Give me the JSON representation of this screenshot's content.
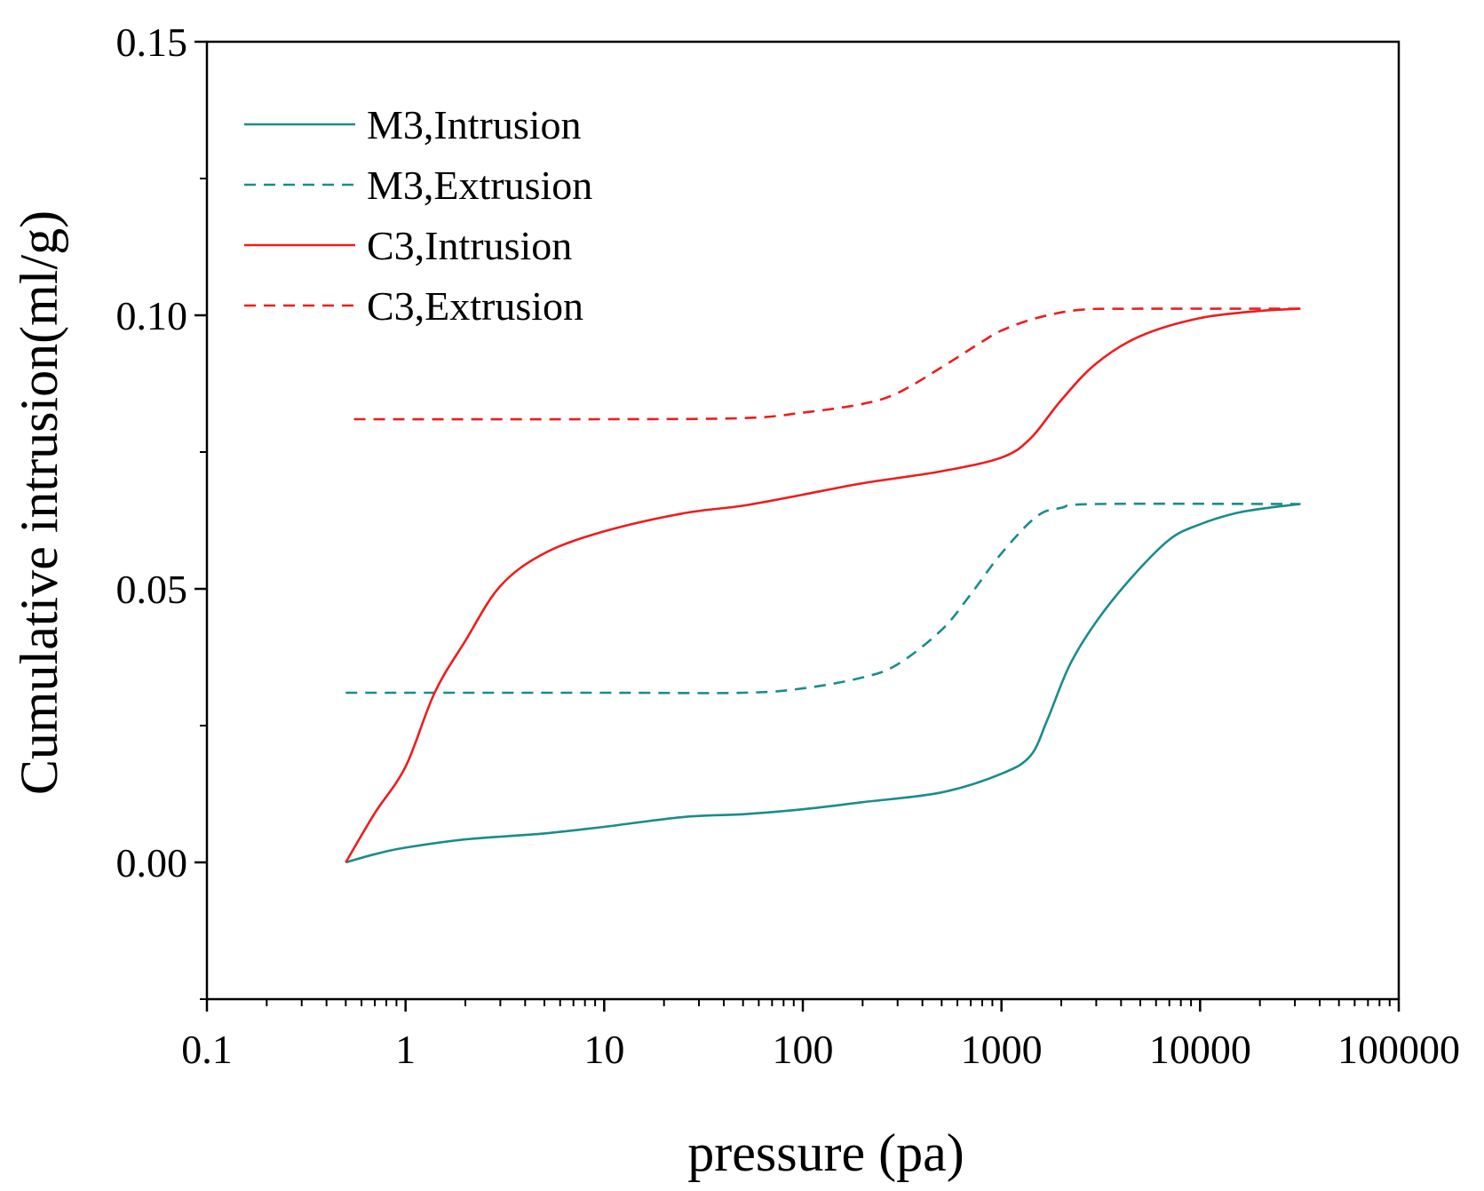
{
  "chart_data": {
    "type": "line",
    "title": "",
    "xlabel": "pressure (pa)",
    "ylabel": "Cumulative intrusion(ml/g)",
    "xscale": "log",
    "xlim": [
      0.1,
      100000
    ],
    "ylim": [
      -0.025,
      0.15
    ],
    "x_ticks": [
      0.1,
      1,
      10,
      100,
      1000,
      10000,
      100000
    ],
    "x_tick_labels": [
      "0.1",
      "1",
      "10",
      "100",
      "1000",
      "10000",
      "100000"
    ],
    "y_ticks": [
      0.0,
      0.05,
      0.1,
      0.15
    ],
    "y_tick_labels": [
      "0.00",
      "0.05",
      "0.10",
      "0.15"
    ],
    "grid": false,
    "legend_position": "top-left",
    "series": [
      {
        "name": "M3,Intrusion",
        "color": "#1a8c8c",
        "dash": "solid",
        "points": [
          [
            0.5,
            0.0
          ],
          [
            0.7,
            0.0015
          ],
          [
            1,
            0.0027
          ],
          [
            2,
            0.0042
          ],
          [
            5,
            0.0053
          ],
          [
            10,
            0.0065
          ],
          [
            25,
            0.0083
          ],
          [
            50,
            0.0088
          ],
          [
            100,
            0.0097
          ],
          [
            200,
            0.011
          ],
          [
            500,
            0.0128
          ],
          [
            1000,
            0.0162
          ],
          [
            1400,
            0.0195
          ],
          [
            1700,
            0.026
          ],
          [
            2200,
            0.036
          ],
          [
            3000,
            0.044
          ],
          [
            4500,
            0.052
          ],
          [
            7000,
            0.059
          ],
          [
            10000,
            0.0618
          ],
          [
            15000,
            0.0638
          ],
          [
            22000,
            0.0648
          ],
          [
            32000,
            0.0655
          ]
        ]
      },
      {
        "name": "M3,Extrusion",
        "color": "#1a8c8c",
        "dash": "dashed",
        "points": [
          [
            0.5,
            0.031
          ],
          [
            10,
            0.031
          ],
          [
            50,
            0.031
          ],
          [
            100,
            0.0318
          ],
          [
            200,
            0.0338
          ],
          [
            300,
            0.0362
          ],
          [
            500,
            0.0425
          ],
          [
            700,
            0.049
          ],
          [
            1000,
            0.0565
          ],
          [
            1500,
            0.0632
          ],
          [
            2000,
            0.0648
          ],
          [
            3000,
            0.0655
          ],
          [
            32000,
            0.0655
          ]
        ]
      },
      {
        "name": "C3,Intrusion",
        "color": "#ee1c1c",
        "dash": "solid",
        "points": [
          [
            0.5,
            0.0
          ],
          [
            0.7,
            0.009
          ],
          [
            1,
            0.0175
          ],
          [
            1.4,
            0.031
          ],
          [
            2,
            0.0405
          ],
          [
            3,
            0.0505
          ],
          [
            5,
            0.0565
          ],
          [
            10,
            0.0605
          ],
          [
            25,
            0.0638
          ],
          [
            50,
            0.0652
          ],
          [
            100,
            0.0672
          ],
          [
            200,
            0.0693
          ],
          [
            500,
            0.0715
          ],
          [
            1000,
            0.074
          ],
          [
            1400,
            0.0775
          ],
          [
            2000,
            0.0845
          ],
          [
            3000,
            0.0912
          ],
          [
            5000,
            0.0962
          ],
          [
            10000,
            0.0995
          ],
          [
            20000,
            0.1008
          ],
          [
            32000,
            0.1012
          ]
        ]
      },
      {
        "name": "C3,Extrusion",
        "color": "#ee1c1c",
        "dash": "dashed",
        "points": [
          [
            0.55,
            0.081
          ],
          [
            10,
            0.081
          ],
          [
            50,
            0.0812
          ],
          [
            100,
            0.0822
          ],
          [
            200,
            0.0838
          ],
          [
            300,
            0.0858
          ],
          [
            500,
            0.0905
          ],
          [
            800,
            0.0952
          ],
          [
            1000,
            0.0972
          ],
          [
            1500,
            0.0995
          ],
          [
            2500,
            0.101
          ],
          [
            5000,
            0.1012
          ],
          [
            32000,
            0.1012
          ]
        ]
      }
    ]
  }
}
